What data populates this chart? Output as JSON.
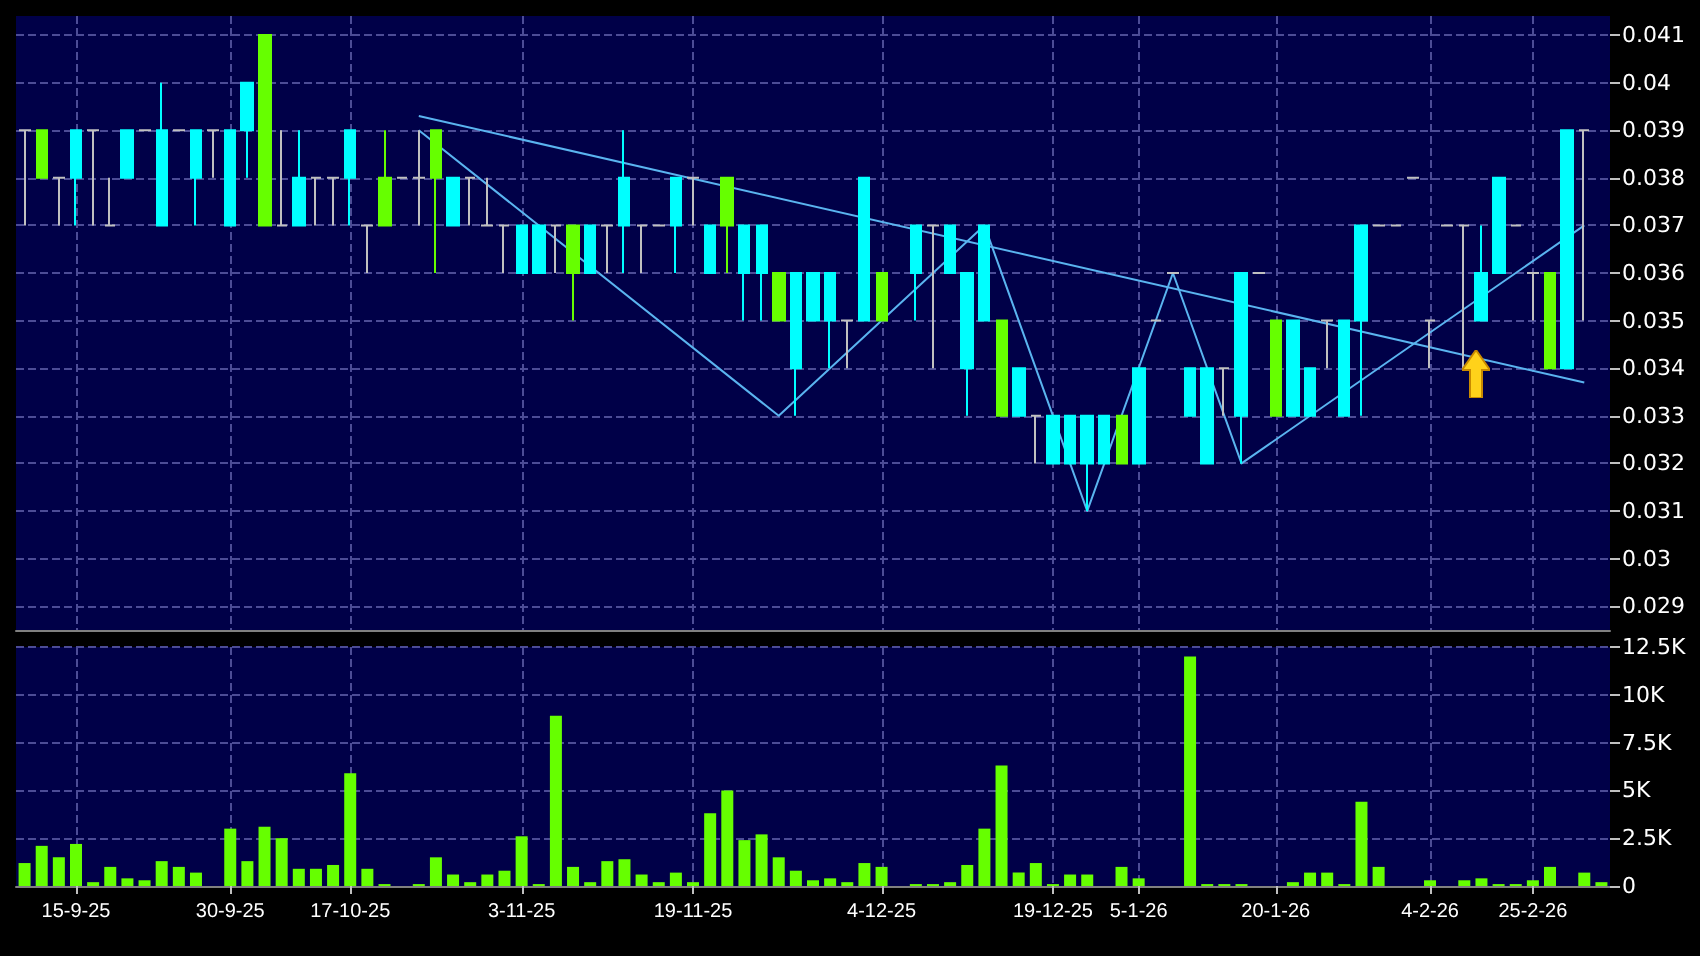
{
  "chart_data": [
    {
      "type": "candlestick",
      "ylim": [
        0.0285,
        0.0414
      ],
      "yticks": [
        0.029,
        0.03,
        0.031,
        0.032,
        0.033,
        0.034,
        0.035,
        0.036,
        0.037,
        0.038,
        0.039,
        0.04,
        0.041
      ],
      "tick_labels": "y",
      "grid": true,
      "marker": "none",
      "categories": [
        null,
        null,
        null,
        null,
        null,
        null,
        null,
        null,
        null,
        null,
        null,
        null,
        null,
        null,
        null,
        null,
        null,
        null,
        null,
        null,
        null,
        null,
        null,
        null,
        null,
        null,
        null,
        null,
        null,
        null,
        null,
        null,
        null,
        null,
        null,
        null,
        null,
        null,
        null,
        null,
        null,
        null,
        null,
        null,
        null,
        null,
        null,
        null,
        null,
        null,
        null,
        null,
        null,
        null,
        null,
        null,
        null,
        null,
        null,
        null,
        null,
        null,
        null,
        null,
        null,
        null,
        null,
        null,
        null,
        null,
        null,
        null,
        null,
        null,
        null,
        null,
        null,
        null,
        null,
        null,
        null,
        null,
        null,
        null,
        null,
        null,
        null,
        null,
        null,
        null,
        null,
        null,
        null
      ],
      "ohlc": [
        [
          0.039,
          0.039,
          0.037,
          0.039
        ],
        [
          0.039,
          0.039,
          0.038,
          0.038
        ],
        [
          0.038,
          0.038,
          0.037,
          0.038
        ],
        [
          0.038,
          0.039,
          0.037,
          0.039
        ],
        [
          0.039,
          0.039,
          0.037,
          0.039
        ],
        [
          0.037,
          0.038,
          0.037,
          0.037
        ],
        [
          0.038,
          0.039,
          0.038,
          0.039
        ],
        [
          0.039,
          0.039,
          0.039,
          0.039
        ],
        [
          0.037,
          0.04,
          0.037,
          0.039
        ],
        [
          0.039,
          0.039,
          0.039,
          0.039
        ],
        [
          0.038,
          0.039,
          0.037,
          0.039
        ],
        [
          0.039,
          0.039,
          0.038,
          0.039
        ],
        [
          0.037,
          0.039,
          0.037,
          0.039
        ],
        [
          0.039,
          0.04,
          0.038,
          0.04
        ],
        [
          0.041,
          0.041,
          0.037,
          0.037
        ],
        [
          0.037,
          0.039,
          0.037,
          0.037
        ],
        [
          0.037,
          0.039,
          0.037,
          0.038
        ],
        [
          0.038,
          0.038,
          0.037,
          0.038
        ],
        [
          0.038,
          0.038,
          0.037,
          0.038
        ],
        [
          0.038,
          0.039,
          0.037,
          0.039
        ],
        [
          0.037,
          0.037,
          0.036,
          0.037
        ],
        [
          0.038,
          0.039,
          0.037,
          0.037
        ],
        [
          0.038,
          0.038,
          0.038,
          0.038
        ],
        [
          0.038,
          0.039,
          0.037,
          0.038
        ],
        [
          0.039,
          0.039,
          0.036,
          0.038
        ],
        [
          0.037,
          0.038,
          0.037,
          0.038
        ],
        [
          0.038,
          0.038,
          0.037,
          0.038
        ],
        [
          0.037,
          0.038,
          0.037,
          0.037
        ],
        [
          0.037,
          0.037,
          0.036,
          0.037
        ],
        [
          0.036,
          0.037,
          0.036,
          0.037
        ],
        [
          0.036,
          0.037,
          0.036,
          0.037
        ],
        [
          0.037,
          0.037,
          0.036,
          0.037
        ],
        [
          0.037,
          0.037,
          0.035,
          0.036
        ],
        [
          0.036,
          0.037,
          0.036,
          0.037
        ],
        [
          0.037,
          0.037,
          0.036,
          0.037
        ],
        [
          0.037,
          0.039,
          0.036,
          0.038
        ],
        [
          0.037,
          0.037,
          0.036,
          0.037
        ],
        [
          0.037,
          0.037,
          0.037,
          0.037
        ],
        [
          0.037,
          0.038,
          0.036,
          0.038
        ],
        [
          0.038,
          0.038,
          0.037,
          0.038
        ],
        [
          0.036,
          0.037,
          0.036,
          0.037
        ],
        [
          0.038,
          0.038,
          0.036,
          0.037
        ],
        [
          0.036,
          0.037,
          0.035,
          0.037
        ],
        [
          0.036,
          0.037,
          0.035,
          0.037
        ],
        [
          0.036,
          0.036,
          0.035,
          0.035
        ],
        [
          0.034,
          0.036,
          0.033,
          0.036
        ],
        [
          0.035,
          0.036,
          0.035,
          0.036
        ],
        [
          0.035,
          0.036,
          0.034,
          0.036
        ],
        [
          0.035,
          0.035,
          0.034,
          0.035
        ],
        [
          0.035,
          0.038,
          0.035,
          0.038
        ],
        [
          0.036,
          0.036,
          0.035,
          0.035
        ],
        null,
        [
          0.036,
          0.037,
          0.035,
          0.037
        ],
        [
          0.037,
          0.037,
          0.034,
          0.037
        ],
        [
          0.036,
          0.037,
          0.036,
          0.037
        ],
        [
          0.034,
          0.036,
          0.033,
          0.036
        ],
        [
          0.035,
          0.037,
          0.035,
          0.037
        ],
        [
          0.035,
          0.035,
          0.033,
          0.033
        ],
        [
          0.033,
          0.034,
          0.033,
          0.034
        ],
        [
          0.033,
          0.033,
          0.032,
          0.033
        ],
        [
          0.032,
          0.033,
          0.032,
          0.033
        ],
        [
          0.032,
          0.033,
          0.032,
          0.033
        ],
        [
          0.032,
          0.033,
          0.031,
          0.033
        ],
        [
          0.032,
          0.033,
          0.032,
          0.033
        ],
        [
          0.033,
          0.033,
          0.032,
          0.032
        ],
        [
          0.032,
          0.034,
          0.032,
          0.034
        ],
        [
          0.035,
          0.035,
          0.035,
          0.035
        ],
        [
          0.036,
          0.036,
          0.036,
          0.036
        ],
        [
          0.033,
          0.034,
          0.033,
          0.034
        ],
        [
          0.032,
          0.034,
          0.032,
          0.034
        ],
        [
          0.034,
          0.034,
          0.033,
          0.034
        ],
        [
          0.033,
          0.036,
          0.032,
          0.036
        ],
        [
          0.036,
          0.036,
          0.036,
          0.036
        ],
        [
          0.035,
          0.035,
          0.033,
          0.033
        ],
        [
          0.033,
          0.035,
          0.033,
          0.035
        ],
        [
          0.033,
          0.034,
          0.033,
          0.034
        ],
        [
          0.035,
          0.035,
          0.034,
          0.035
        ],
        [
          0.033,
          0.035,
          0.033,
          0.035
        ],
        [
          0.035,
          0.037,
          0.033,
          0.037
        ],
        [
          0.037,
          0.037,
          0.037,
          0.037
        ],
        [
          0.037,
          0.037,
          0.037,
          0.037
        ],
        [
          0.038,
          0.038,
          0.038,
          0.038
        ],
        [
          0.035,
          0.035,
          0.034,
          0.035
        ],
        [
          0.037,
          0.037,
          0.037,
          0.037
        ],
        [
          0.037,
          0.037,
          0.034,
          0.037
        ],
        [
          0.035,
          0.037,
          0.035,
          0.036
        ],
        [
          0.036,
          0.038,
          0.036,
          0.038
        ],
        [
          0.037,
          0.037,
          0.037,
          0.037
        ],
        [
          0.036,
          0.036,
          0.035,
          0.036
        ],
        [
          0.036,
          0.036,
          0.034,
          0.034
        ],
        [
          0.034,
          0.039,
          0.034,
          0.039
        ],
        [
          0.039,
          0.039,
          0.035,
          0.039
        ],
        null
      ],
      "colors": [
        "#c0c0c0",
        "#66ff00",
        "#c0c0c0",
        "#00ffff",
        "#c0c0c0",
        "#c0c0c0",
        "#00ffff",
        "#c0c0c0",
        "#00ffff",
        "#c0c0c0",
        "#00ffff",
        "#c0c0c0",
        "#00ffff",
        "#00ffff",
        "#66ff00",
        "#c0c0c0",
        "#00ffff",
        "#c0c0c0",
        "#c0c0c0",
        "#00ffff",
        "#c0c0c0",
        "#66ff00",
        "#c0c0c0",
        "#c0c0c0",
        "#66ff00",
        "#00ffff",
        "#c0c0c0",
        "#c0c0c0",
        "#c0c0c0",
        "#00ffff",
        "#00ffff",
        "#c0c0c0",
        "#66ff00",
        "#00ffff",
        "#c0c0c0",
        "#00ffff",
        "#c0c0c0",
        "#c0c0c0",
        "#00ffff",
        "#c0c0c0",
        "#00ffff",
        "#66ff00",
        "#00ffff",
        "#00ffff",
        "#66ff00",
        "#00ffff",
        "#00ffff",
        "#00ffff",
        "#c0c0c0",
        "#00ffff",
        "#66ff00",
        null,
        "#00ffff",
        "#c0c0c0",
        "#00ffff",
        "#00ffff",
        "#00ffff",
        "#66ff00",
        "#00ffff",
        "#c0c0c0",
        "#00ffff",
        "#00ffff",
        "#00ffff",
        "#00ffff",
        "#66ff00",
        "#00ffff",
        "#c0c0c0",
        "#c0c0c0",
        "#00ffff",
        "#00ffff",
        "#c0c0c0",
        "#00ffff",
        "#c0c0c0",
        "#66ff00",
        "#00ffff",
        "#00ffff",
        "#c0c0c0",
        "#00ffff",
        "#00ffff",
        "#c0c0c0",
        "#c0c0c0",
        "#c0c0c0",
        "#c0c0c0",
        "#c0c0c0",
        "#c0c0c0",
        "#00ffff",
        "#00ffff",
        "#c0c0c0",
        "#c0c0c0",
        "#66ff00",
        "#00ffff",
        "#c0c0c0",
        null
      ],
      "series": [
        {
          "type": "line",
          "color": "#5ab4f0",
          "values": [
            null,
            null,
            null,
            null,
            null,
            null,
            null,
            null,
            null,
            null,
            null,
            null,
            null,
            null,
            null,
            null,
            null,
            null,
            null,
            null,
            null,
            null,
            null,
            0.0393,
            null,
            null,
            null,
            null,
            null,
            null,
            null,
            null,
            null,
            null,
            null,
            null,
            null,
            null,
            null,
            null,
            null,
            null,
            null,
            null,
            null,
            null,
            null,
            null,
            null,
            null,
            null,
            null,
            null,
            null,
            null,
            null,
            null,
            null,
            null,
            null,
            null,
            null,
            null,
            null,
            null,
            null,
            null,
            null,
            null,
            null,
            null,
            null,
            null,
            null,
            null,
            null,
            null,
            null,
            null,
            null,
            null,
            null,
            null,
            null,
            null,
            null,
            null,
            null,
            null,
            null,
            null,
            0.0337,
            null
          ]
        },
        {
          "type": "line",
          "color": "#5ab4f0",
          "values": [
            null,
            null,
            null,
            null,
            null,
            null,
            null,
            null,
            null,
            null,
            null,
            null,
            null,
            null,
            null,
            null,
            null,
            null,
            null,
            null,
            null,
            null,
            null,
            0.039,
            null,
            null,
            null,
            null,
            null,
            null,
            null,
            null,
            null,
            null,
            null,
            null,
            null,
            null,
            null,
            null,
            null,
            null,
            null,
            null,
            0.033,
            null,
            null,
            null,
            null,
            null,
            null,
            null,
            null,
            null,
            null,
            null,
            0.037,
            null,
            null,
            null,
            null,
            null,
            0.031,
            null,
            null,
            null,
            null,
            0.036,
            null,
            null,
            null,
            0.032,
            null,
            null,
            null,
            null,
            null,
            null,
            null,
            null,
            null,
            null,
            null,
            null,
            null,
            null,
            null,
            null,
            null,
            null,
            null,
            0.037,
            null
          ]
        }
      ]
    },
    {
      "type": "bar",
      "color": "#66ff00",
      "ylim": [
        0,
        12500
      ],
      "grid": true,
      "yticks": [
        0,
        {
          "value": 2500,
          "label": "2.5K"
        },
        {
          "value": 5000,
          "label": "5K"
        },
        {
          "value": 7500,
          "label": "7.5K"
        },
        {
          "value": 10000,
          "label": "10K"
        },
        {
          "value": 12500,
          "label": "12.5K"
        }
      ],
      "categories": [
        null,
        null,
        null,
        "15-9-25",
        null,
        null,
        null,
        null,
        null,
        null,
        null,
        null,
        "30-9-25",
        null,
        null,
        null,
        null,
        null,
        null,
        "17-10-25",
        null,
        null,
        null,
        null,
        null,
        null,
        null,
        null,
        null,
        "3-11-25",
        null,
        null,
        null,
        null,
        null,
        null,
        null,
        null,
        null,
        "19-11-25",
        null,
        null,
        null,
        null,
        null,
        null,
        null,
        null,
        null,
        null,
        "4-12-25",
        null,
        null,
        null,
        null,
        null,
        null,
        null,
        null,
        null,
        "19-12-25",
        null,
        null,
        null,
        null,
        "5-1-26",
        null,
        null,
        null,
        null,
        null,
        null,
        null,
        "20-1-26",
        null,
        null,
        null,
        null,
        null,
        null,
        null,
        null,
        "4-2-26",
        null,
        null,
        null,
        null,
        null,
        "25-2-26",
        null,
        null,
        null,
        null
      ],
      "values": [
        1200,
        2100,
        1500,
        2200,
        200,
        1000,
        400,
        300,
        1300,
        1000,
        700,
        0,
        3000,
        1300,
        3100,
        2500,
        900,
        900,
        1100,
        5900,
        900,
        100,
        0,
        100,
        1500,
        600,
        200,
        600,
        800,
        2600,
        100,
        8900,
        1000,
        200,
        1300,
        1400,
        600,
        200,
        700,
        200,
        3800,
        5000,
        2400,
        2700,
        1500,
        800,
        300,
        400,
        200,
        1200,
        1000,
        0,
        100,
        100,
        200,
        1100,
        3000,
        6300,
        700,
        1200,
        100,
        600,
        600,
        0,
        1000,
        400,
        0,
        0,
        12000,
        100,
        100,
        100,
        0,
        0,
        200,
        700,
        700,
        100,
        4400,
        1000,
        0,
        0,
        300,
        0,
        300,
        400,
        100,
        100,
        300,
        1000,
        0,
        700,
        200
      ]
    }
  ]
}
